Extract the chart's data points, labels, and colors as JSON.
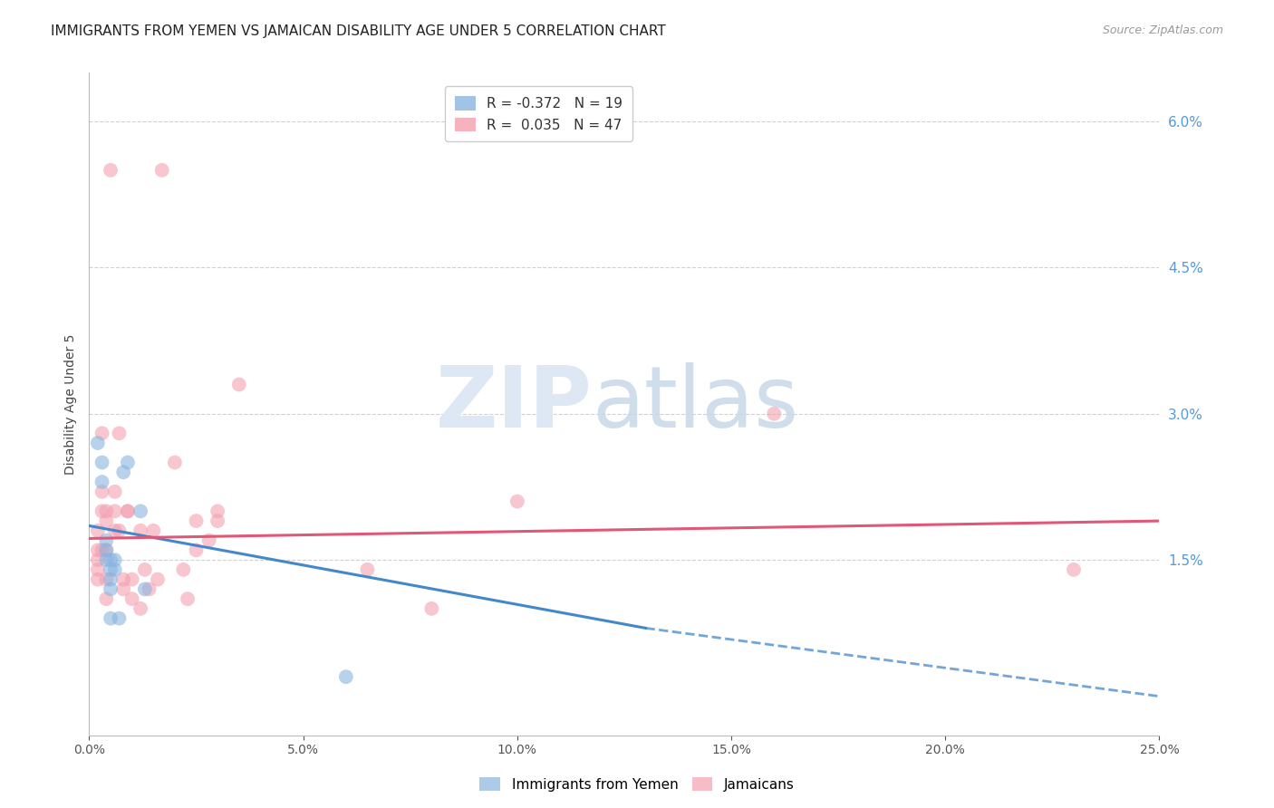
{
  "title": "IMMIGRANTS FROM YEMEN VS JAMAICAN DISABILITY AGE UNDER 5 CORRELATION CHART",
  "source": "Source: ZipAtlas.com",
  "ylabel": "Disability Age Under 5",
  "right_yticks": [
    0.0,
    0.015,
    0.03,
    0.045,
    0.06
  ],
  "right_yticklabels": [
    "",
    "1.5%",
    "3.0%",
    "4.5%",
    "6.0%"
  ],
  "xlim": [
    0.0,
    0.25
  ],
  "ylim": [
    -0.003,
    0.065
  ],
  "xticklabels": [
    "0.0%",
    "5.0%",
    "10.0%",
    "15.0%",
    "20.0%",
    "25.0%"
  ],
  "xticks": [
    0.0,
    0.05,
    0.1,
    0.15,
    0.2,
    0.25
  ],
  "legend_blue_r": "-0.372",
  "legend_blue_n": "19",
  "legend_pink_r": "0.035",
  "legend_pink_n": "47",
  "blue_color": "#8ab4e0",
  "pink_color": "#f4a0b0",
  "blue_scatter": [
    [
      0.002,
      0.027
    ],
    [
      0.003,
      0.025
    ],
    [
      0.003,
      0.023
    ],
    [
      0.004,
      0.016
    ],
    [
      0.004,
      0.015
    ],
    [
      0.004,
      0.017
    ],
    [
      0.005,
      0.015
    ],
    [
      0.005,
      0.014
    ],
    [
      0.005,
      0.013
    ],
    [
      0.005,
      0.012
    ],
    [
      0.005,
      0.009
    ],
    [
      0.006,
      0.015
    ],
    [
      0.006,
      0.014
    ],
    [
      0.007,
      0.009
    ],
    [
      0.008,
      0.024
    ],
    [
      0.009,
      0.025
    ],
    [
      0.012,
      0.02
    ],
    [
      0.013,
      0.012
    ],
    [
      0.06,
      0.003
    ]
  ],
  "pink_scatter": [
    [
      0.002,
      0.016
    ],
    [
      0.002,
      0.015
    ],
    [
      0.002,
      0.018
    ],
    [
      0.002,
      0.013
    ],
    [
      0.002,
      0.014
    ],
    [
      0.003,
      0.02
    ],
    [
      0.003,
      0.016
    ],
    [
      0.003,
      0.022
    ],
    [
      0.003,
      0.028
    ],
    [
      0.004,
      0.02
    ],
    [
      0.004,
      0.019
    ],
    [
      0.004,
      0.016
    ],
    [
      0.004,
      0.013
    ],
    [
      0.004,
      0.011
    ],
    [
      0.005,
      0.055
    ],
    [
      0.006,
      0.022
    ],
    [
      0.006,
      0.02
    ],
    [
      0.006,
      0.018
    ],
    [
      0.007,
      0.028
    ],
    [
      0.007,
      0.018
    ],
    [
      0.008,
      0.013
    ],
    [
      0.008,
      0.012
    ],
    [
      0.009,
      0.02
    ],
    [
      0.009,
      0.02
    ],
    [
      0.01,
      0.013
    ],
    [
      0.01,
      0.011
    ],
    [
      0.012,
      0.018
    ],
    [
      0.012,
      0.01
    ],
    [
      0.013,
      0.014
    ],
    [
      0.014,
      0.012
    ],
    [
      0.015,
      0.018
    ],
    [
      0.016,
      0.013
    ],
    [
      0.017,
      0.055
    ],
    [
      0.02,
      0.025
    ],
    [
      0.022,
      0.014
    ],
    [
      0.023,
      0.011
    ],
    [
      0.025,
      0.019
    ],
    [
      0.025,
      0.016
    ],
    [
      0.028,
      0.017
    ],
    [
      0.03,
      0.02
    ],
    [
      0.03,
      0.019
    ],
    [
      0.035,
      0.033
    ],
    [
      0.065,
      0.014
    ],
    [
      0.1,
      0.021
    ],
    [
      0.16,
      0.03
    ],
    [
      0.23,
      0.014
    ],
    [
      0.08,
      0.01
    ]
  ],
  "blue_trendline_solid": {
    "x_start": 0.0,
    "y_start": 0.0185,
    "x_end": 0.13,
    "y_end": 0.008
  },
  "blue_trendline_dashed": {
    "x_start": 0.13,
    "y_start": 0.008,
    "x_end": 0.25,
    "y_end": 0.001
  },
  "pink_trendline": {
    "x_start": 0.0,
    "y_start": 0.0172,
    "x_end": 0.25,
    "y_end": 0.019
  },
  "grid_color": "#cccccc",
  "background_color": "#ffffff",
  "title_fontsize": 11,
  "axis_label_fontsize": 10,
  "tick_fontsize": 10,
  "legend_fontsize": 11,
  "watermark_line1": "ZIP",
  "watermark_line2": "atlas",
  "watermark_color": "#dde8f4",
  "watermark_fontsize": 68
}
